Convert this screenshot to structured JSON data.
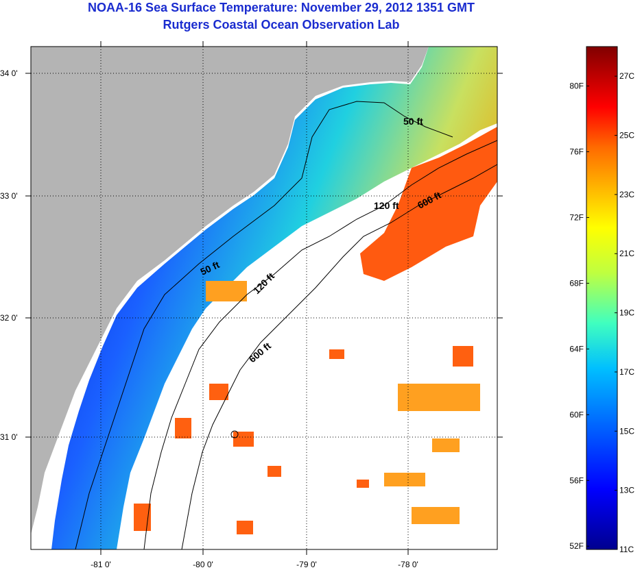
{
  "header": {
    "title": "NOAA-16 Sea Surface Temperature:  November 29, 2012 1351 GMT",
    "subtitle": "Rutgers Coastal Ocean Observation Lab"
  },
  "map": {
    "lat_ticks": [
      "34 0'",
      "33 0'",
      "32 0'",
      "31 0'"
    ],
    "lon_ticks": [
      "-81 0'",
      "-80 0'",
      "-79 0'",
      "-78 0'"
    ],
    "contours": [
      "50 ft",
      "120 ft",
      "600 ft",
      "50 ft",
      "120 ft",
      "600 ft"
    ],
    "colors": {
      "land": "#b4b4b4",
      "ocean_no_data": "#ffffff",
      "grid": "#000000"
    }
  },
  "colorbar": {
    "fahrenheit": [
      "80F",
      "76F",
      "72F",
      "68F",
      "64F",
      "60F",
      "56F",
      "52F"
    ],
    "celsius": [
      "27C",
      "25C",
      "23C",
      "21C",
      "19C",
      "17C",
      "15C",
      "13C",
      "11C"
    ],
    "range_c": [
      11,
      28
    ]
  }
}
